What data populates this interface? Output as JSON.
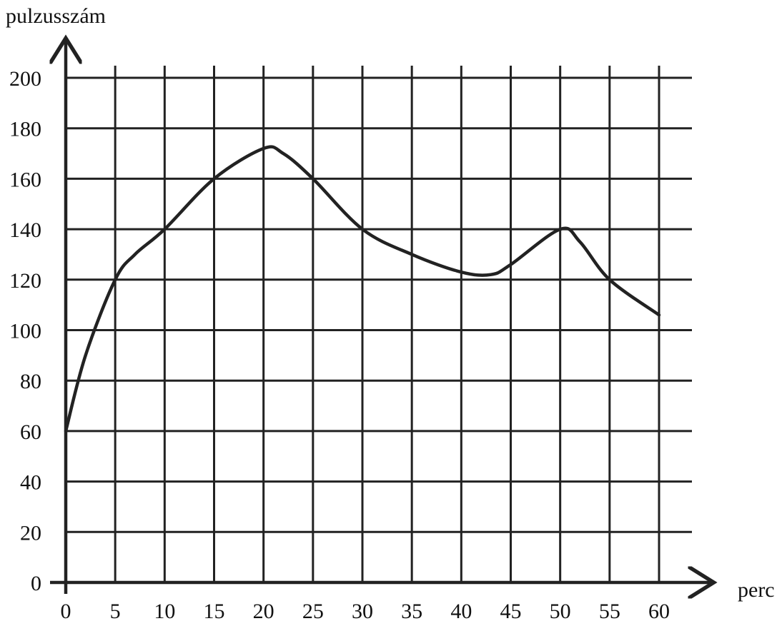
{
  "chart_data": {
    "type": "line",
    "title": "",
    "xlabel": "perc",
    "ylabel": "pulzusszám",
    "xlim": [
      0,
      60
    ],
    "ylim": [
      0,
      200
    ],
    "x_ticks": [
      "0",
      "5",
      "10",
      "15",
      "20",
      "25",
      "30",
      "35",
      "40",
      "45",
      "50",
      "55",
      "60"
    ],
    "y_ticks": [
      "0",
      "20",
      "40",
      "60",
      "80",
      "100",
      "120",
      "140",
      "160",
      "180",
      "200"
    ],
    "grid": true,
    "legend": "none",
    "line_color": "#222222",
    "series": [
      {
        "x": [
          0,
          2,
          5,
          7,
          10,
          15,
          20,
          22,
          25,
          30,
          35,
          40,
          43,
          45,
          50,
          52,
          55,
          60
        ],
        "values": [
          60,
          90,
          120,
          130,
          140,
          160,
          172,
          170,
          160,
          140,
          130,
          123,
          122,
          126,
          140,
          135,
          120,
          106
        ]
      }
    ]
  }
}
